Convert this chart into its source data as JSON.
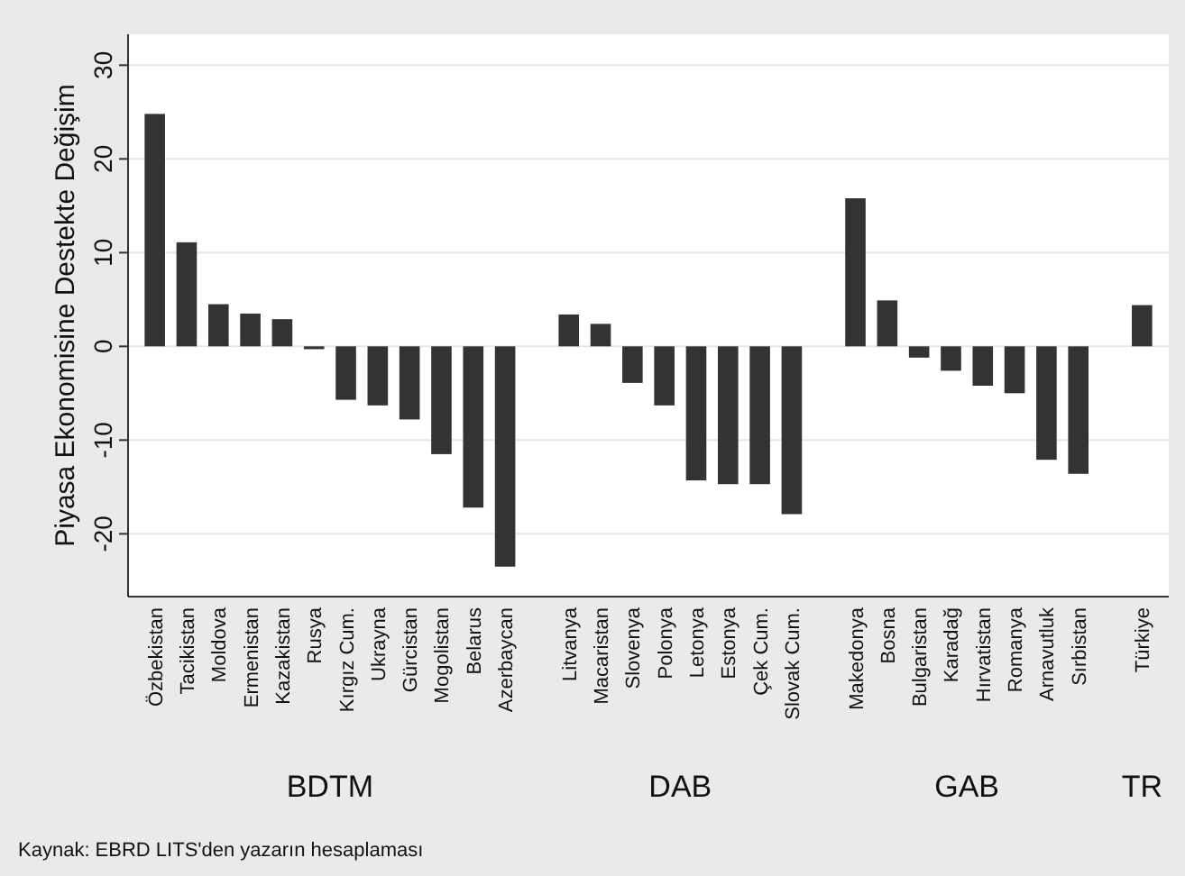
{
  "chart_data": {
    "type": "bar",
    "ylabel": "Piyasa Ekonomisine Destekte Değişim",
    "categories": [
      "Özbekistan",
      "Tacikistan",
      "Moldova",
      "Ermenistan",
      "Kazakistan",
      "Rusya",
      "Kırgız Cum.",
      "Ukrayna",
      "Gürcistan",
      "Mogolistan",
      "Belarus",
      "Azerbaycan",
      null,
      "Litvanya",
      "Macaristan",
      "Slovenya",
      "Polonya",
      "Letonya",
      "Estonya",
      "Çek Cum.",
      "Slovak Cum.",
      null,
      "Makedonya",
      "Bosna",
      "Bulgaristan",
      "Karadağ",
      "Hırvatistan",
      "Romanya",
      "Arnavutluk",
      "Sırbistan",
      null,
      "Türkiye"
    ],
    "values": [
      24.8,
      11.1,
      4.5,
      3.5,
      2.9,
      -0.3,
      -5.7,
      -6.3,
      -7.8,
      -11.5,
      -17.2,
      -23.5,
      null,
      3.4,
      2.4,
      -3.9,
      -6.3,
      -14.3,
      -14.7,
      -14.7,
      -17.9,
      null,
      15.8,
      4.9,
      -1.2,
      -2.6,
      -4.2,
      -5.0,
      -12.1,
      -13.6,
      null,
      4.4
    ],
    "color": "#333333",
    "ylim": [
      -26.7,
      33.3
    ],
    "yticks": [
      -20,
      -10,
      0,
      10,
      20,
      30
    ],
    "grid": "y",
    "annotations": [
      "BDTM",
      "DAB",
      "GAB",
      "TR",
      "Kaynak: EBRD LITS'den yazarın hesaplaması"
    ]
  }
}
